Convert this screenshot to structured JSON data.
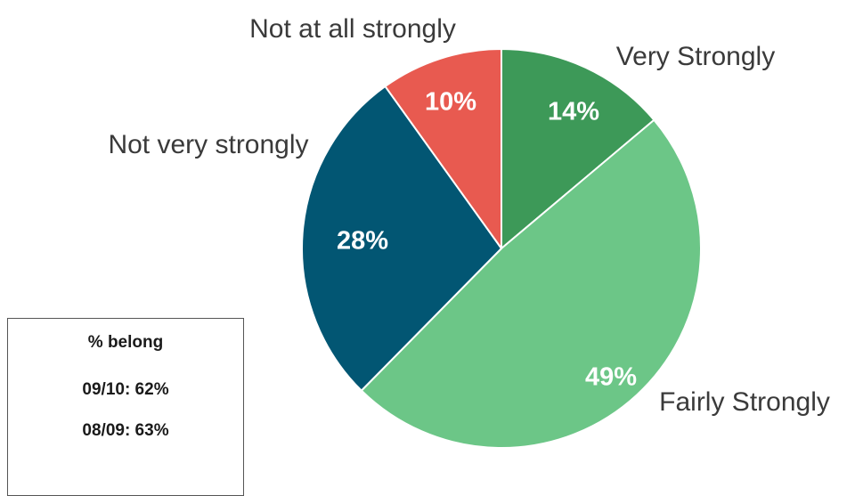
{
  "chart_data": {
    "type": "pie",
    "start_angle_deg": 0,
    "direction": "clockwise",
    "slices": [
      {
        "label": "Very Strongly",
        "value": 14,
        "value_label": "14%",
        "color": "#3d9958"
      },
      {
        "label": "Fairly Strongly",
        "value": 49,
        "value_label": "49%",
        "color": "#6cc687"
      },
      {
        "label": "Not very strongly",
        "value": 28,
        "value_label": "28%",
        "color": "#025673"
      },
      {
        "label": "Not at all strongly",
        "value": 10,
        "value_label": "10%",
        "color": "#e85a50"
      }
    ]
  },
  "info_box": {
    "title": "% belong",
    "rows": [
      "09/10: 62%",
      "08/09: 63%"
    ]
  }
}
